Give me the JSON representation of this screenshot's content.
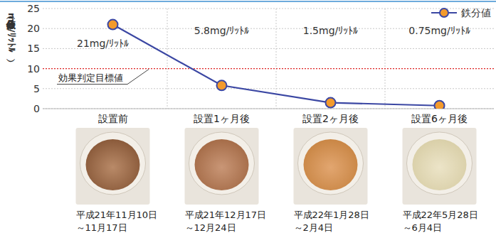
{
  "chart_data": {
    "type": "line",
    "categories": [
      "設置前",
      "設置1ヶ月後",
      "設置2ヶ月後",
      "設置6ヶ月後"
    ],
    "series": [
      {
        "name": "鉄分値",
        "color": "#3b47a3",
        "marker": "circle",
        "line_style": "solid",
        "values": [
          21,
          5.8,
          1.5,
          0.75
        ],
        "value_labels": [
          "21mg/ﾘｯﾄﾙ",
          "5.8mg/ﾘｯﾄﾙ",
          "1.5mg/ﾘｯﾄﾙ",
          "0.75mg/ﾘｯﾄﾙ"
        ]
      }
    ],
    "ylabel": "鉄分値（mg/ﾘｯﾄﾙ）",
    "ylim": [
      0,
      25
    ],
    "yticks": [
      0,
      5,
      10,
      15,
      20,
      25
    ],
    "grid": true,
    "legend": "top-right",
    "data_labels": true,
    "annotations": [
      {
        "text": "効果判定目標値",
        "y": 10,
        "color": "#e02424",
        "line_style": "dotted"
      }
    ],
    "photo_captions": [
      [
        "平成21年11月10日",
        "～11月17日"
      ],
      [
        "平成21年12月17日",
        "～12月24日"
      ],
      [
        "平成22年1月28日",
        "～2月4日"
      ],
      [
        "平成22年5月28日",
        "～6月4日"
      ]
    ]
  }
}
